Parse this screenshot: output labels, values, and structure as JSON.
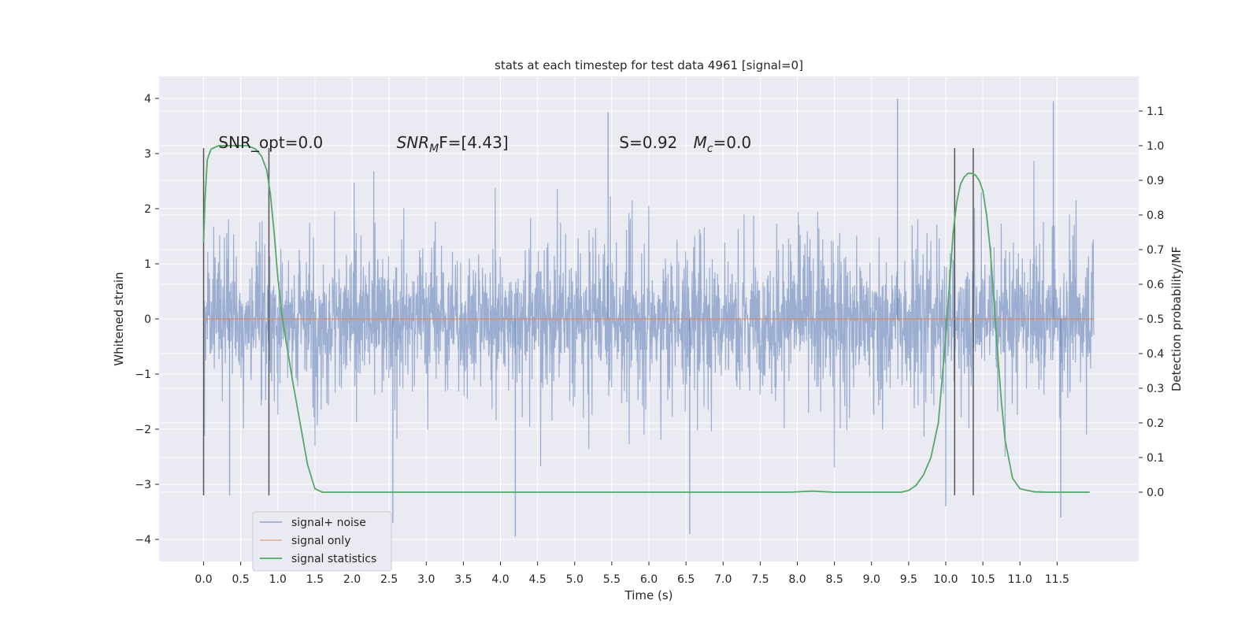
{
  "chart_data": {
    "type": "line",
    "title": "stats at each timestep for test data 4961 [signal=0]",
    "xlabel": "Time (s)",
    "ylabel": "Whitened strain",
    "ylabel_right": "Detection probability/MF",
    "xlim": [
      -0.6,
      12.6
    ],
    "ylim": [
      -4.4,
      4.4
    ],
    "ylim_right": [
      -0.2,
      1.2
    ],
    "x_ticks": [
      0.0,
      0.5,
      1.0,
      1.5,
      2.0,
      2.5,
      3.0,
      3.5,
      4.0,
      4.5,
      5.0,
      5.5,
      6.0,
      6.5,
      7.0,
      7.5,
      8.0,
      8.5,
      9.0,
      9.5,
      10.0,
      10.5,
      11.0,
      11.5
    ],
    "x_tick_labels": [
      "0.0",
      "0.5",
      "1.0",
      "1.5",
      "2.0",
      "2.5",
      "3.0",
      "3.5",
      "4.0",
      "4.5",
      "5.0",
      "5.5",
      "6.0",
      "6.5",
      "7.0",
      "7.5",
      "8.0",
      "8.5",
      "9.0",
      "9.5",
      "10.0",
      "10.5",
      "11.0",
      "11.5"
    ],
    "y_ticks": [
      4,
      3,
      2,
      1,
      0,
      -1,
      -2,
      -3,
      -4
    ],
    "y_tick_labels": [
      "4",
      "3",
      "2",
      "1",
      "0",
      "−1",
      "−2",
      "−3",
      "−4"
    ],
    "y_right_ticks": [
      1.1,
      1.0,
      0.9,
      0.8,
      0.7,
      0.6,
      0.5,
      0.4,
      0.3,
      0.2,
      0.1,
      0.0
    ],
    "y_right_tick_labels": [
      "1.1",
      "1.0",
      "0.9",
      "0.8",
      "0.7",
      "0.6",
      "0.5",
      "0.4",
      "0.3",
      "0.2",
      "0.1",
      "0.0"
    ],
    "grid": true,
    "legend_position": "lower-left",
    "series": [
      {
        "name": "signal+ noise",
        "color": "#4c72b0",
        "axis": "left",
        "style": "dense noise trace, alpha 0.5",
        "x_range": [
          0.0,
          12.0
        ],
        "typical_envelope": [
          -2.2,
          2.6
        ],
        "extremes": [
          {
            "x": 9.35,
            "y": 4.0
          },
          {
            "x": 11.45,
            "y": 3.95
          },
          {
            "x": 5.45,
            "y": 3.75
          },
          {
            "x": 4.2,
            "y": -3.95
          },
          {
            "x": 6.55,
            "y": -3.9
          },
          {
            "x": 0.35,
            "y": -3.2
          },
          {
            "x": 11.55,
            "y": -3.6
          },
          {
            "x": 10.0,
            "y": -3.4
          },
          {
            "x": 2.55,
            "y": -3.7
          }
        ]
      },
      {
        "name": "signal only",
        "color": "#dd8452",
        "axis": "left",
        "x": [
          0.0,
          12.0
        ],
        "y": [
          0.0,
          0.0
        ]
      },
      {
        "name": "signal statistics",
        "color": "#55a868",
        "axis": "right",
        "x": [
          0.0,
          0.02,
          0.05,
          0.1,
          0.2,
          0.3,
          0.5,
          0.6,
          0.7,
          0.78,
          0.85,
          0.9,
          0.95,
          1.0,
          1.05,
          1.1,
          1.2,
          1.3,
          1.4,
          1.5,
          1.6,
          1.7,
          2.0,
          3.0,
          3.7,
          4.0,
          5.0,
          5.5,
          6.0,
          7.0,
          7.5,
          7.9,
          8.2,
          8.5,
          9.0,
          9.4,
          9.5,
          9.6,
          9.7,
          9.8,
          9.9,
          10.0,
          10.05,
          10.1,
          10.15,
          10.2,
          10.25,
          10.3,
          10.35,
          10.4,
          10.45,
          10.5,
          10.55,
          10.6,
          10.65,
          10.7,
          10.75,
          10.8,
          10.9,
          11.0,
          11.1,
          11.2,
          11.4,
          11.6,
          11.8,
          11.94
        ],
        "y": [
          0.72,
          0.85,
          0.96,
          0.99,
          1.0,
          1.0,
          1.0,
          1.0,
          0.99,
          0.97,
          0.93,
          0.86,
          0.75,
          0.62,
          0.52,
          0.45,
          0.32,
          0.2,
          0.08,
          0.01,
          0.0,
          0.0,
          0.0,
          0.0,
          0.0,
          0.0,
          0.0,
          0.0,
          0.0,
          0.0,
          0.0,
          0.0,
          0.003,
          0.0,
          0.0,
          0.0,
          0.005,
          0.02,
          0.05,
          0.1,
          0.2,
          0.45,
          0.6,
          0.75,
          0.84,
          0.89,
          0.91,
          0.92,
          0.92,
          0.915,
          0.9,
          0.87,
          0.8,
          0.7,
          0.55,
          0.4,
          0.26,
          0.15,
          0.04,
          0.01,
          0.005,
          0.001,
          0.0,
          0.0,
          0.0,
          0.0
        ]
      }
    ],
    "vertical_markers": [
      {
        "x": 0.0,
        "y_range": [
          -3.2,
          3.1
        ]
      },
      {
        "x": 0.88,
        "y_range": [
          -3.2,
          3.1
        ]
      },
      {
        "x": 10.12,
        "y_range": [
          -3.2,
          3.1
        ]
      },
      {
        "x": 10.37,
        "y_range": [
          -3.2,
          3.1
        ]
      }
    ],
    "annotations": [
      {
        "x": 0.2,
        "y": 3.2,
        "text": "SNR_opt=0.0"
      },
      {
        "x": 2.6,
        "y": 3.2,
        "prefix": "SNR",
        "sub": "M",
        "suffix": "F=[4.43]"
      },
      {
        "x": 5.6,
        "y": 3.2,
        "text": "S=0.92"
      },
      {
        "x": 6.6,
        "y": 3.2,
        "prefix": "M",
        "sub": "c",
        "suffix": "=0.0"
      }
    ],
    "legend": [
      "signal+ noise",
      "signal only",
      "signal statistics"
    ]
  }
}
